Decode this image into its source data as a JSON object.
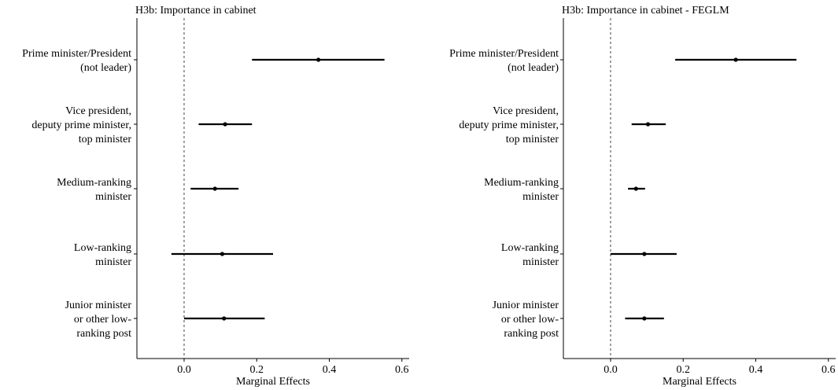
{
  "chart_data": [
    {
      "type": "dot-whisker",
      "title": "H3b: Importance in cabinet",
      "xlabel": "Marginal Effects",
      "xlim": [
        -0.13,
        0.62
      ],
      "xticks": [
        "0.0",
        "0.2",
        "0.4",
        "0.6"
      ],
      "reference_line": 0,
      "categories": [
        "Prime minister/President\n(not leader)",
        "Vice president,\ndeputy prime minister,\ntop minister",
        "Medium-ranking\nminister",
        "Low-ranking\nminister",
        "Junior minister\nor other low-\nranking post"
      ],
      "estimates": [
        0.37,
        0.113,
        0.085,
        0.105,
        0.11
      ],
      "ci_low": [
        0.187,
        0.04,
        0.018,
        -0.035,
        0.0
      ],
      "ci_high": [
        0.552,
        0.187,
        0.15,
        0.245,
        0.222
      ]
    },
    {
      "type": "dot-whisker",
      "title": "H3b: Importance in cabinet - FEGLM",
      "xlabel": "Marginal Effects",
      "xlim": [
        -0.13,
        0.62
      ],
      "xticks": [
        "0.0",
        "0.2",
        "0.4",
        "0.6"
      ],
      "reference_line": 0,
      "categories": [
        "Prime minister/President\n(not leader)",
        "Vice president,\ndeputy prime minister,\ntop minister",
        "Medium-ranking\nminister",
        "Low-ranking\nminister",
        "Junior minister\nor other low-\nranking post"
      ],
      "estimates": [
        0.345,
        0.103,
        0.07,
        0.093,
        0.093
      ],
      "ci_low": [
        0.178,
        0.058,
        0.048,
        0.0,
        0.04
      ],
      "ci_high": [
        0.512,
        0.152,
        0.095,
        0.182,
        0.147
      ]
    }
  ]
}
